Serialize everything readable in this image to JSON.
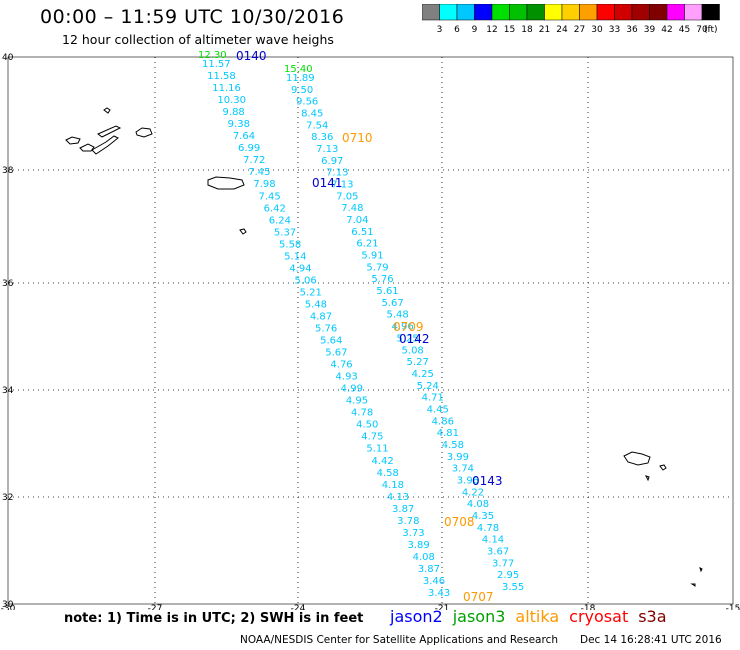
{
  "header": {
    "title": "00:00 – 11:59 UTC 10/30/2016",
    "subtitle": "12 hour collection of altimeter wave heighs"
  },
  "colorbar": {
    "colors": [
      "#808080",
      "#00ffff",
      "#00c8ff",
      "#0000ff",
      "#00e000",
      "#00c000",
      "#009000",
      "#ffff00",
      "#ffd000",
      "#ffa000",
      "#ff0000",
      "#d00000",
      "#a00000",
      "#800000",
      "#ff00ff",
      "#ffa0ff",
      "#000000"
    ],
    "labels": [
      "3",
      "6",
      "9",
      "12",
      "15",
      "18",
      "21",
      "24",
      "27",
      "30",
      "33",
      "36",
      "39",
      "42",
      "45",
      "70"
    ],
    "unit": "(ft)"
  },
  "axes": {
    "lon_ticks": [
      "-30",
      "-27",
      "-24",
      "-21",
      "-18",
      "-15"
    ],
    "lat_ticks": [
      "40",
      "38",
      "36",
      "34",
      "32",
      "30"
    ]
  },
  "passes": [
    {
      "label": "0140",
      "color": "#0000cc"
    },
    {
      "label": "0710",
      "color": "#ff9900"
    },
    {
      "label": "0141",
      "color": "#0000cc"
    },
    {
      "label": "0709",
      "color": "#ff9900"
    },
    {
      "label": "0142",
      "color": "#0000cc"
    },
    {
      "label": "0143",
      "color": "#0000cc"
    },
    {
      "label": "0708",
      "color": "#ff9900"
    },
    {
      "label": "0707",
      "color": "#ff9900"
    }
  ],
  "tracks": [
    {
      "color": "#00c8ff",
      "values": [
        "11.57",
        "11.58",
        "11.16",
        "10.30",
        "9.88",
        "9.38",
        "7.64",
        "6.99",
        "7.72",
        "7.45",
        "7.98",
        "7.45",
        "6.42",
        "6.24",
        "5.37",
        "5.58",
        "5.14",
        "4.94",
        "5.06",
        "5.21",
        "5.48",
        "4.87",
        "5.76",
        "5.64",
        "5.67",
        "4.76",
        "4.93",
        "4.99",
        "4.95",
        "4.78",
        "4.50",
        "4.75",
        "5.11",
        "4.42",
        "4.58",
        "4.18",
        "4.13",
        "3.87",
        "3.78",
        "3.73",
        "3.89",
        "4.08",
        "3.87",
        "3.46",
        "3.43"
      ]
    },
    {
      "color": "#00c8ff",
      "values": [
        "11.89",
        "9.50",
        "9.56",
        "8.45",
        "7.54",
        "8.36",
        "7.13",
        "6.97",
        "7.13",
        "7.13",
        "7.05",
        "7.48",
        "7.04",
        "6.51",
        "6.21",
        "5.91",
        "5.79",
        "5.76",
        "5.61",
        "5.67",
        "5.48",
        "4.96",
        "5.25",
        "5.08",
        "5.27",
        "4.25",
        "5.24",
        "4.71",
        "4.45",
        "4.86",
        "4.81",
        "4.58",
        "3.99",
        "3.74",
        "3.96",
        "4.22",
        "4.08",
        "4.35",
        "4.78",
        "4.14",
        "3.67",
        "3.77",
        "2.95",
        "3.55"
      ]
    }
  ],
  "highlights": [
    {
      "value": "12.30",
      "color": "#00e000"
    },
    {
      "value": "15.40",
      "color": "#00e000"
    }
  ],
  "footer": {
    "note": "note: 1) Time is in UTC; 2) SWH is in feet",
    "satellites": [
      {
        "name": "jason2",
        "color": "#0000ff"
      },
      {
        "name": "jason3",
        "color": "#00a000"
      },
      {
        "name": "altika",
        "color": "#ff9900"
      },
      {
        "name": "cryosat",
        "color": "#ff0000"
      },
      {
        "name": "s3a",
        "color": "#800000"
      }
    ],
    "credit": "NOAA/NESDIS Center for Satellite Applications and Research",
    "generated": "Dec 14 16:28:41 UTC 2016"
  }
}
